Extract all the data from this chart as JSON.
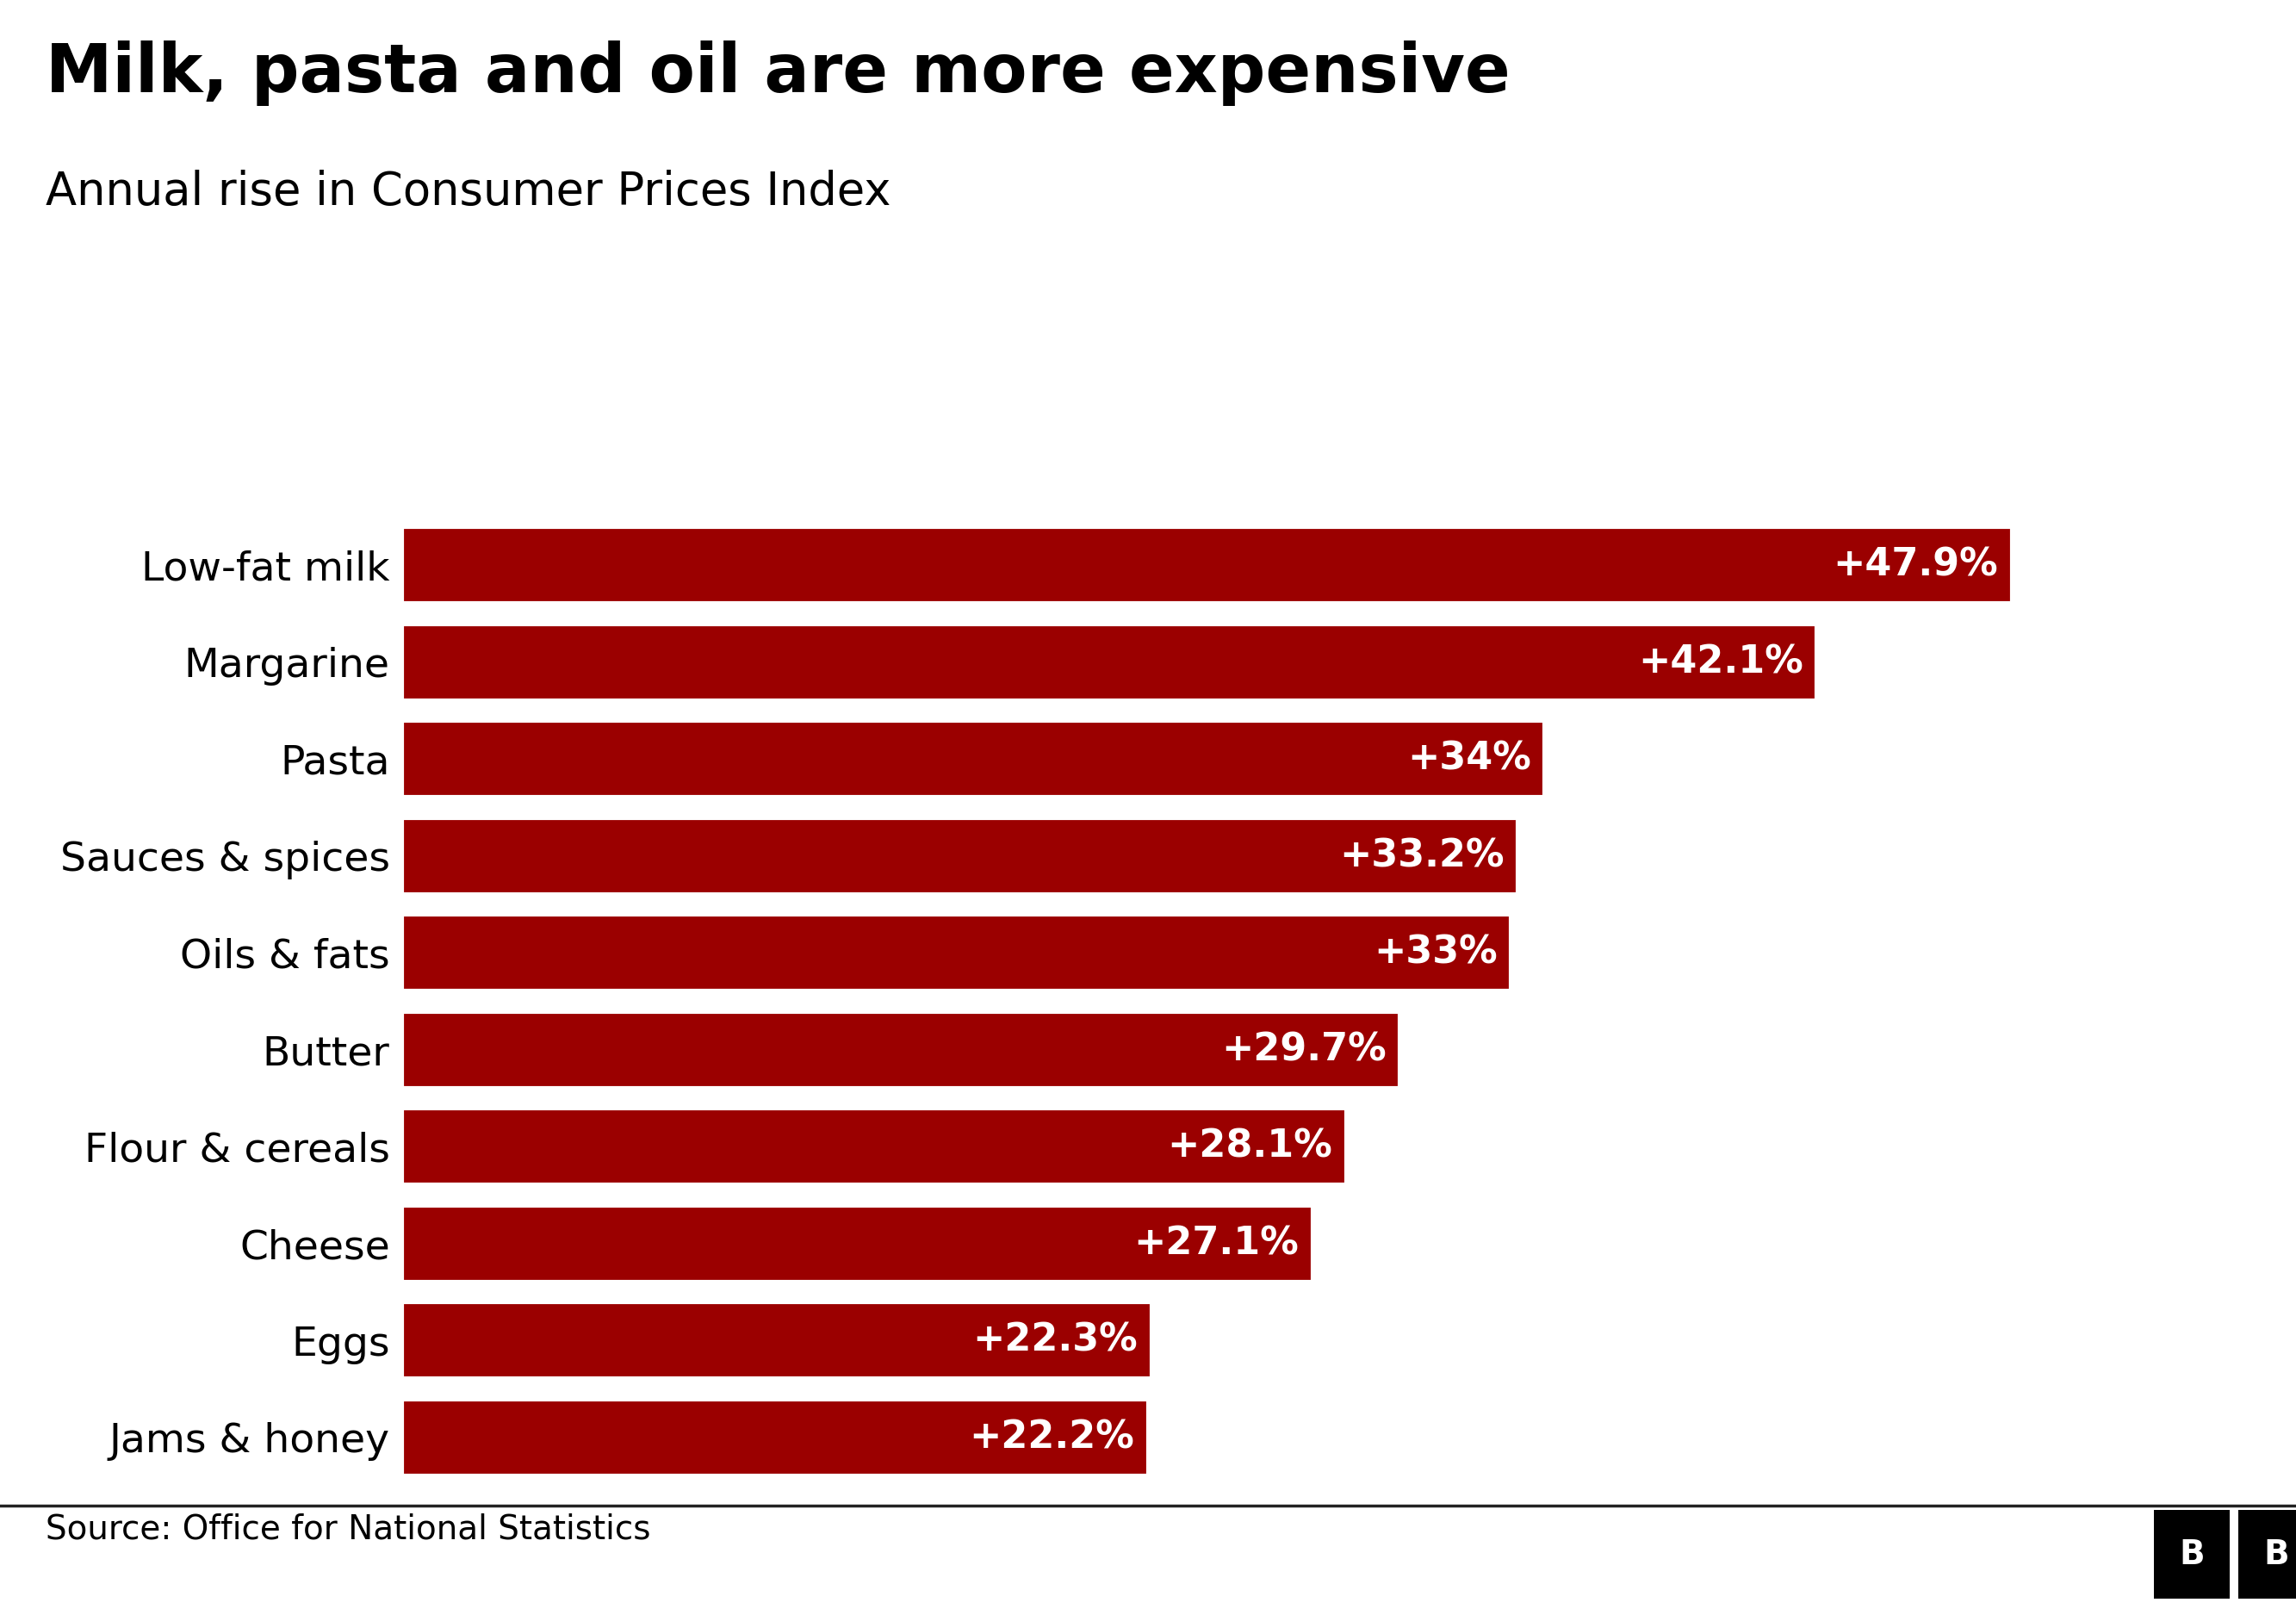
{
  "title": "Milk, pasta and oil are more expensive",
  "subtitle": "Annual rise in Consumer Prices Index",
  "source": "Source: Office for National Statistics",
  "categories": [
    "Jams & honey",
    "Eggs",
    "Cheese",
    "Flour & cereals",
    "Butter",
    "Oils & fats",
    "Sauces & spices",
    "Pasta",
    "Margarine",
    "Low-fat milk"
  ],
  "values": [
    22.2,
    22.3,
    27.1,
    28.1,
    29.7,
    33.0,
    33.2,
    34.0,
    42.1,
    47.9
  ],
  "labels": [
    "+22.2%",
    "+22.3%",
    "+27.1%",
    "+28.1%",
    "+29.7%",
    "+33%",
    "+33.2%",
    "+34%",
    "+42.1%",
    "+47.9%"
  ],
  "bar_color": "#9B0000",
  "background_color": "#ffffff",
  "text_color": "#000000",
  "label_color": "#ffffff",
  "title_fontsize": 56,
  "subtitle_fontsize": 38,
  "source_fontsize": 28,
  "bar_label_fontsize": 32,
  "ytick_fontsize": 34,
  "xlim": [
    0,
    55
  ],
  "bbc_box_color": "#000000",
  "bbc_text_color": "#ffffff"
}
